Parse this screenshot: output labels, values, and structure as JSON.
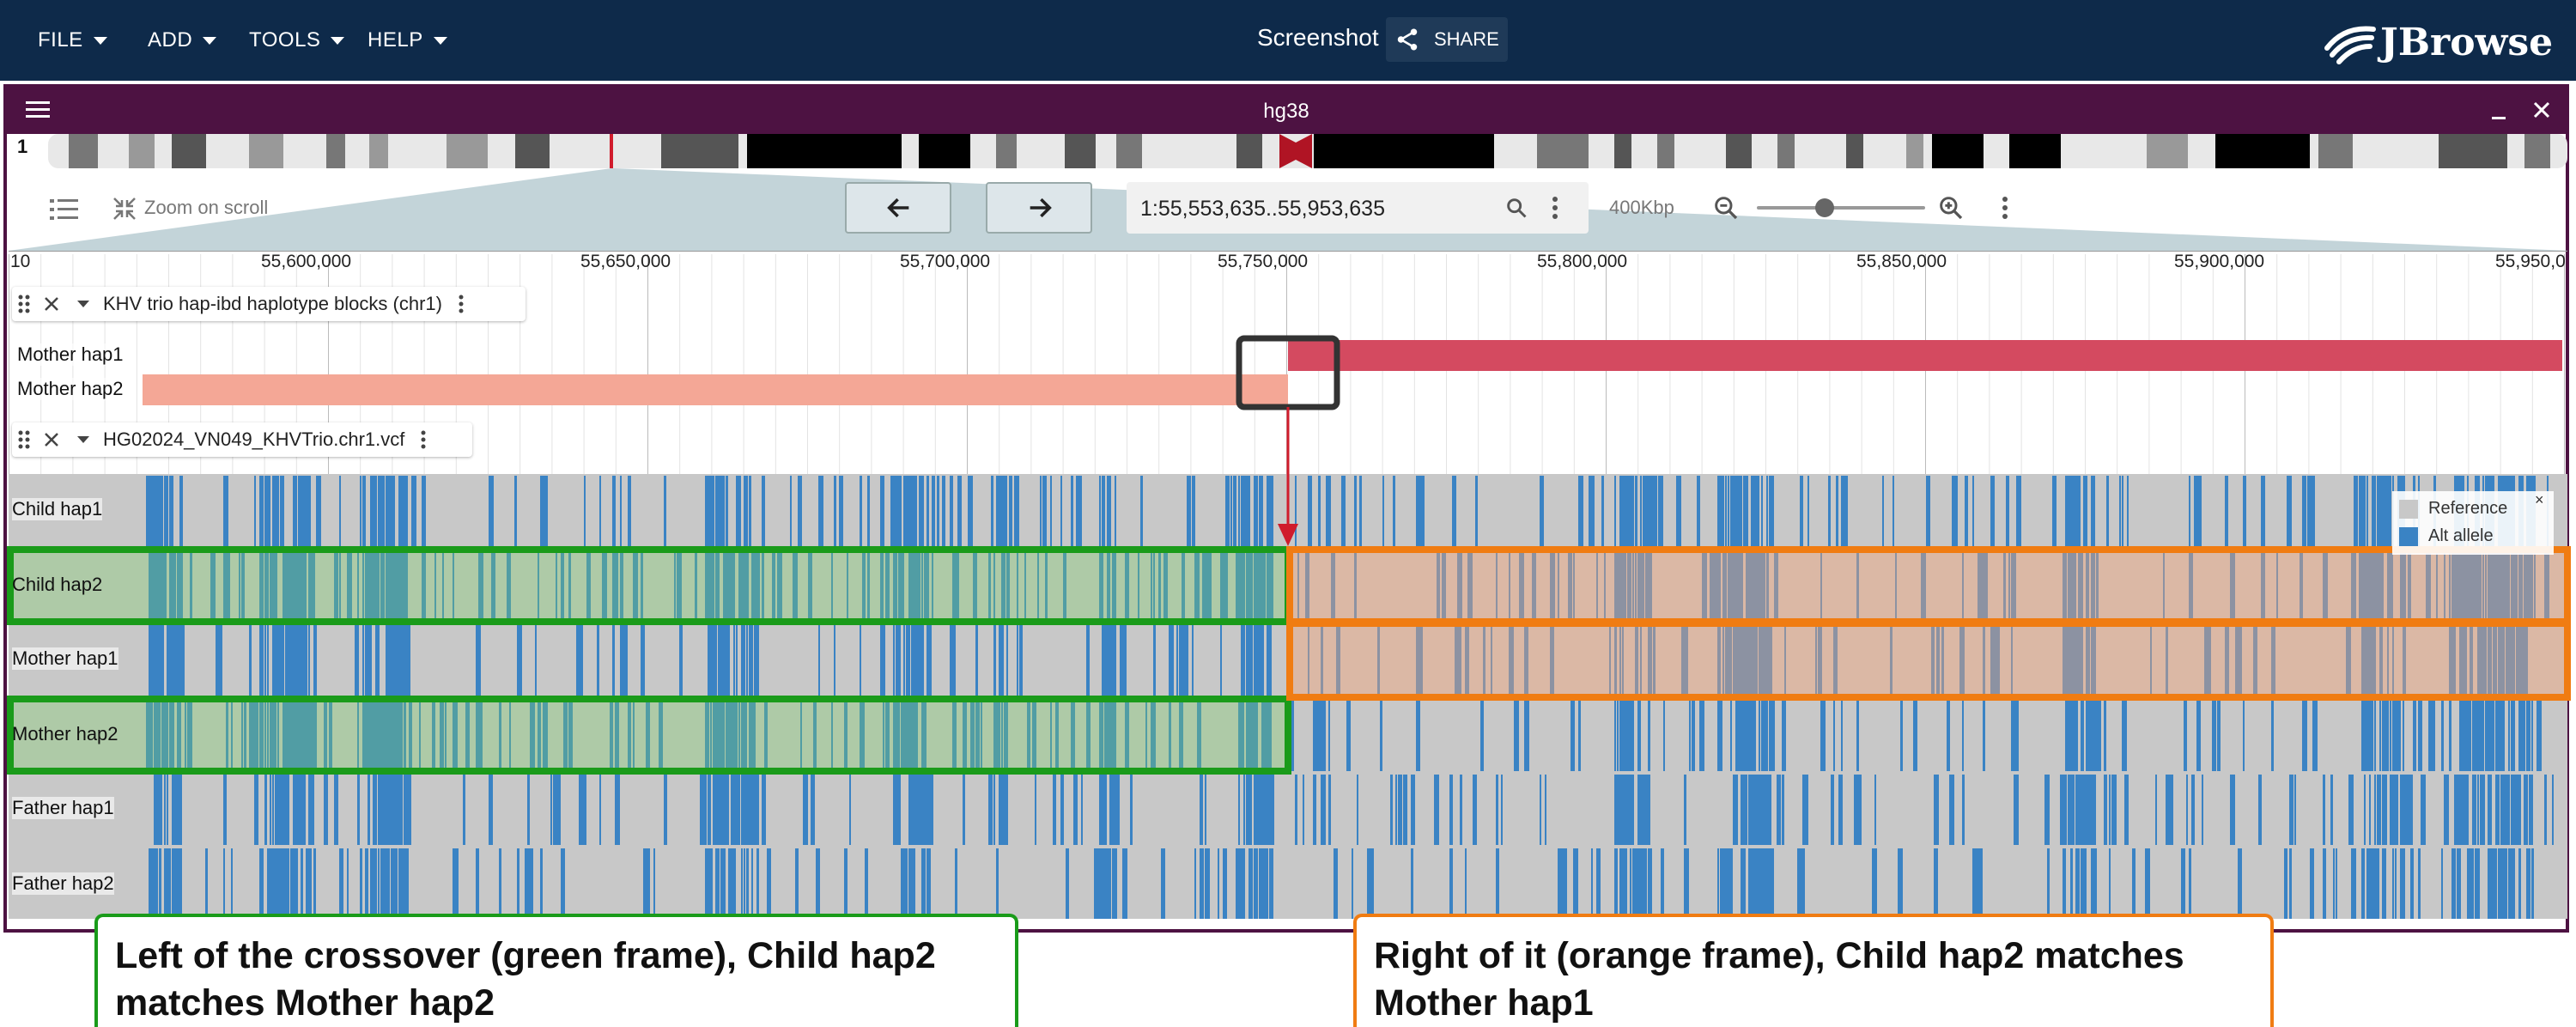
{
  "app": {
    "menus": [
      "FILE",
      "ADD",
      "TOOLS",
      "HELP"
    ],
    "session_name": "Screenshot",
    "share_label": "SHARE",
    "logo_text": "JBrowse",
    "colors": {
      "appbar": "#0e2a4a",
      "view_header": "#4d1242"
    }
  },
  "view": {
    "title": "hg38",
    "chromosome": "1",
    "zoom_on_scroll": "Zoom on scroll",
    "location": "1:55,553,635..55,953,635",
    "scale": "400Kbp",
    "ruler_labels": [
      "10",
      "55,600,000",
      "55,650,000",
      "55,700,000",
      "55,750,000",
      "55,800,000",
      "55,850,000",
      "55,900,000",
      "55,950,0"
    ]
  },
  "tracks": {
    "hapibd": {
      "name": "KHV trio hap-ibd haplotype blocks (chr1)",
      "rows": [
        "Mother hap1",
        "Mother hap2"
      ],
      "colors": {
        "hap1": "#d44a60",
        "hap2": "#f4a796"
      }
    },
    "vcf": {
      "name": "HG02024_VN049_KHVTrio.chr1.vcf",
      "rows": [
        "Child hap1",
        "Child hap2",
        "Mother hap1",
        "Mother hap2",
        "Father hap1",
        "Father hap2"
      ],
      "legend": [
        "Reference",
        "Alt allele"
      ],
      "legend_close": "×",
      "colors": {
        "reference": "#c8c8c8",
        "alt": "#3a83c4"
      }
    }
  },
  "annotations": {
    "left": "Left of the crossover (green frame), Child hap2 matches Mother hap2",
    "right": "Right of it (orange frame), Child hap2 matches Mother hap1",
    "colors": {
      "green": "#1a9b1a",
      "orange": "#f07c12",
      "crossover": "#d01c2c"
    }
  }
}
